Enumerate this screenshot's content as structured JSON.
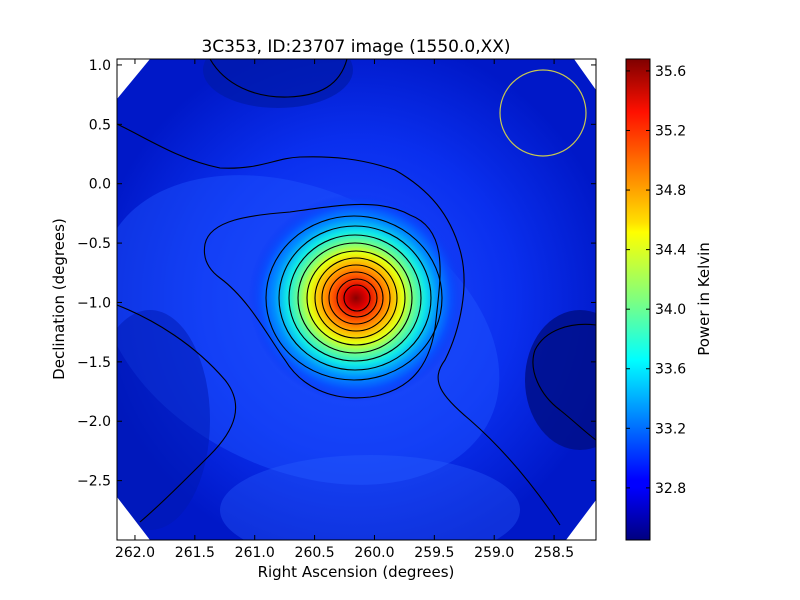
{
  "chart_data": {
    "type": "heatmap",
    "title": "3C353, ID:23707 image (1550.0,XX)",
    "xlabel": "Right Ascension (degrees)",
    "ylabel": "Declination (degrees)",
    "colorbar_label": "Power in Kelvin",
    "colormap": "jet",
    "x_reversed": true,
    "xlim": [
      262.15,
      258.15
    ],
    "ylim": [
      -3.0,
      1.05
    ],
    "x_ticks": [
      262.0,
      261.5,
      261.0,
      260.5,
      260.0,
      259.5,
      259.0,
      258.5
    ],
    "x_tick_labels": [
      "262.0",
      "261.5",
      "261.0",
      "260.5",
      "260.0",
      "259.5",
      "259.0",
      "258.5"
    ],
    "y_ticks": [
      1.0,
      0.5,
      0.0,
      -0.5,
      -1.0,
      -1.5,
      -2.0,
      -2.5
    ],
    "y_tick_labels": [
      "1.0",
      "0.5",
      "0.0",
      "−0.5",
      "−1.0",
      "−1.5",
      "−2.0",
      "−2.5"
    ],
    "colorbar_range": [
      32.45,
      35.68
    ],
    "colorbar_ticks": [
      32.8,
      33.2,
      33.6,
      34.0,
      34.4,
      34.8,
      35.2,
      35.6
    ],
    "colorbar_tick_labels": [
      "32.8",
      "33.2",
      "33.6",
      "34.0",
      "34.4",
      "34.8",
      "35.2",
      "35.6"
    ],
    "background_level": 32.85,
    "peak": {
      "ra": 260.09,
      "dec": -0.96,
      "value": 35.65
    },
    "beam_circle": {
      "ra": 258.52,
      "dec": 0.58,
      "radius_deg": 0.37,
      "color": "#c8c850"
    },
    "contour_color": "#000000"
  }
}
